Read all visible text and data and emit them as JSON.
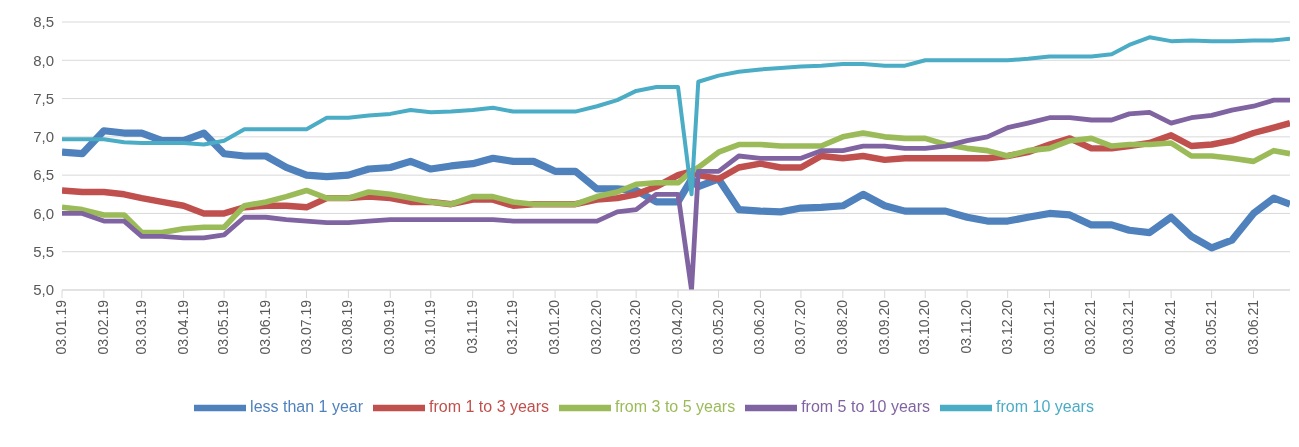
{
  "chart_data": {
    "type": "line",
    "x": [
      "2019-01-03",
      "2019-01-18",
      "2019-02-03",
      "2019-02-18",
      "2019-03-03",
      "2019-03-18",
      "2019-04-03",
      "2019-04-18",
      "2019-05-03",
      "2019-05-18",
      "2019-06-03",
      "2019-06-18",
      "2019-07-03",
      "2019-07-18",
      "2019-08-03",
      "2019-08-18",
      "2019-09-03",
      "2019-09-18",
      "2019-10-03",
      "2019-10-18",
      "2019-11-03",
      "2019-11-18",
      "2019-12-03",
      "2019-12-18",
      "2020-01-03",
      "2020-01-18",
      "2020-02-03",
      "2020-02-18",
      "2020-03-03",
      "2020-03-18",
      "2020-04-03",
      "2020-04-13",
      "2020-04-18",
      "2020-05-03",
      "2020-05-18",
      "2020-06-03",
      "2020-06-18",
      "2020-07-03",
      "2020-07-18",
      "2020-08-03",
      "2020-08-18",
      "2020-09-03",
      "2020-09-18",
      "2020-10-03",
      "2020-10-18",
      "2020-11-03",
      "2020-11-18",
      "2020-12-03",
      "2020-12-18",
      "2021-01-03",
      "2021-01-18",
      "2021-02-03",
      "2021-02-18",
      "2021-03-03",
      "2021-03-18",
      "2021-04-03",
      "2021-04-18",
      "2021-05-03",
      "2021-05-18",
      "2021-06-03",
      "2021-06-18",
      "2021-06-30"
    ],
    "series": [
      {
        "name": "less than 1 year",
        "color": "#4f81bd",
        "values": [
          6.8,
          6.78,
          7.08,
          7.05,
          7.05,
          6.95,
          6.95,
          7.05,
          6.78,
          6.75,
          6.75,
          6.6,
          6.5,
          6.48,
          6.5,
          6.58,
          6.6,
          6.68,
          6.58,
          6.62,
          6.65,
          6.72,
          6.68,
          6.68,
          6.55,
          6.55,
          6.32,
          6.32,
          6.3,
          6.15,
          6.15,
          6.45,
          6.35,
          6.45,
          6.05,
          6.03,
          6.02,
          6.07,
          6.08,
          6.1,
          6.25,
          6.1,
          6.03,
          6.03,
          6.03,
          5.95,
          5.9,
          5.9,
          5.95,
          6.0,
          5.98,
          5.85,
          5.85,
          5.78,
          5.75,
          5.95,
          5.7,
          5.55,
          5.65,
          6.0,
          6.2,
          6.12
        ]
      },
      {
        "name": "from 1 to 3 years",
        "color": "#c0504d",
        "values": [
          6.3,
          6.28,
          6.28,
          6.25,
          6.2,
          6.15,
          6.1,
          6.0,
          6.0,
          6.08,
          6.1,
          6.1,
          6.08,
          6.2,
          6.2,
          6.22,
          6.2,
          6.15,
          6.15,
          6.12,
          6.18,
          6.18,
          6.1,
          6.12,
          6.12,
          6.12,
          6.18,
          6.2,
          6.25,
          6.35,
          6.5,
          6.55,
          6.5,
          6.45,
          6.6,
          6.65,
          6.6,
          6.6,
          6.75,
          6.72,
          6.75,
          6.7,
          6.72,
          6.72,
          6.72,
          6.72,
          6.72,
          6.75,
          6.8,
          6.9,
          6.98,
          6.85,
          6.85,
          6.88,
          6.92,
          7.02,
          6.88,
          6.9,
          6.95,
          7.05,
          7.12,
          7.18
        ]
      },
      {
        "name": "from 3 to 5 years",
        "color": "#9bbb59",
        "values": [
          6.08,
          6.05,
          5.98,
          5.98,
          5.75,
          5.75,
          5.8,
          5.82,
          5.82,
          6.1,
          6.15,
          6.22,
          6.3,
          6.2,
          6.2,
          6.28,
          6.25,
          6.2,
          6.15,
          6.12,
          6.22,
          6.22,
          6.15,
          6.12,
          6.12,
          6.12,
          6.22,
          6.28,
          6.38,
          6.4,
          6.4,
          6.55,
          6.6,
          6.8,
          6.9,
          6.9,
          6.88,
          6.88,
          6.88,
          7.0,
          7.05,
          7.0,
          6.98,
          6.98,
          6.9,
          6.85,
          6.82,
          6.75,
          6.82,
          6.85,
          6.95,
          6.98,
          6.88,
          6.9,
          6.9,
          6.92,
          6.75,
          6.75,
          6.72,
          6.68,
          6.82,
          6.78
        ]
      },
      {
        "name": "from 5 to 10 years",
        "color": "#8064a2",
        "values": [
          6.0,
          6.0,
          5.9,
          5.9,
          5.7,
          5.7,
          5.68,
          5.68,
          5.72,
          5.95,
          5.95,
          5.92,
          5.9,
          5.88,
          5.88,
          5.9,
          5.92,
          5.92,
          5.92,
          5.92,
          5.92,
          5.92,
          5.9,
          5.9,
          5.9,
          5.9,
          5.9,
          6.02,
          6.05,
          6.25,
          6.25,
          5.0,
          6.55,
          6.55,
          6.75,
          6.72,
          6.72,
          6.72,
          6.82,
          6.82,
          6.88,
          6.88,
          6.85,
          6.85,
          6.88,
          6.95,
          7.0,
          7.12,
          7.18,
          7.25,
          7.25,
          7.22,
          7.22,
          7.3,
          7.32,
          7.18,
          7.25,
          7.28,
          7.35,
          7.4,
          7.48,
          7.48
        ]
      },
      {
        "name": "from 10 years",
        "color": "#4bacc6",
        "values": [
          6.97,
          6.97,
          6.97,
          6.93,
          6.92,
          6.92,
          6.92,
          6.9,
          6.95,
          7.1,
          7.1,
          7.1,
          7.1,
          7.25,
          7.25,
          7.28,
          7.3,
          7.35,
          7.32,
          7.33,
          7.35,
          7.38,
          7.33,
          7.33,
          7.33,
          7.33,
          7.4,
          7.48,
          7.6,
          7.65,
          7.65,
          6.25,
          7.72,
          7.8,
          7.85,
          7.88,
          7.9,
          7.92,
          7.93,
          7.95,
          7.95,
          7.93,
          7.93,
          8.0,
          8.0,
          8.0,
          8.0,
          8.0,
          8.02,
          8.05,
          8.05,
          8.05,
          8.08,
          8.2,
          8.3,
          8.25,
          8.26,
          8.25,
          8.25,
          8.26,
          8.26,
          8.28
        ]
      }
    ],
    "xlim": [
      "2019-01-03",
      "2021-06-30"
    ],
    "xticks": [
      {
        "value": "2019-01-03",
        "label": "03.01.19"
      },
      {
        "value": "2019-02-03",
        "label": "03.02.19"
      },
      {
        "value": "2019-03-03",
        "label": "03.03.19"
      },
      {
        "value": "2019-04-03",
        "label": "03.04.19"
      },
      {
        "value": "2019-05-03",
        "label": "03.05.19"
      },
      {
        "value": "2019-06-03",
        "label": "03.06.19"
      },
      {
        "value": "2019-07-03",
        "label": "03.07.19"
      },
      {
        "value": "2019-08-03",
        "label": "03.08.19"
      },
      {
        "value": "2019-09-03",
        "label": "03.09.19"
      },
      {
        "value": "2019-10-03",
        "label": "03.10.19"
      },
      {
        "value": "2019-11-03",
        "label": "03.11.19"
      },
      {
        "value": "2019-12-03",
        "label": "03.12.19"
      },
      {
        "value": "2020-01-03",
        "label": "03.01.20"
      },
      {
        "value": "2020-02-03",
        "label": "03.02.20"
      },
      {
        "value": "2020-03-03",
        "label": "03.03.20"
      },
      {
        "value": "2020-04-03",
        "label": "03.04.20"
      },
      {
        "value": "2020-05-03",
        "label": "03.05.20"
      },
      {
        "value": "2020-06-03",
        "label": "03.06.20"
      },
      {
        "value": "2020-07-03",
        "label": "03.07.20"
      },
      {
        "value": "2020-08-03",
        "label": "03.08.20"
      },
      {
        "value": "2020-09-03",
        "label": "03.09.20"
      },
      {
        "value": "2020-10-03",
        "label": "03.10.20"
      },
      {
        "value": "2020-11-03",
        "label": "03.11.20"
      },
      {
        "value": "2020-12-03",
        "label": "03.12.20"
      },
      {
        "value": "2021-01-03",
        "label": "03.01.21"
      },
      {
        "value": "2021-02-03",
        "label": "03.02.21"
      },
      {
        "value": "2021-03-03",
        "label": "03.03.21"
      },
      {
        "value": "2021-04-03",
        "label": "03.04.21"
      },
      {
        "value": "2021-05-03",
        "label": "03.05.21"
      },
      {
        "value": "2021-06-03",
        "label": "03.06.21"
      }
    ],
    "ylim": [
      5.0,
      8.5
    ],
    "yticks": [
      {
        "value": 5.0,
        "label": "5,0"
      },
      {
        "value": 5.5,
        "label": "5,5"
      },
      {
        "value": 6.0,
        "label": "6,0"
      },
      {
        "value": 6.5,
        "label": "6,5"
      },
      {
        "value": 7.0,
        "label": "7,0"
      },
      {
        "value": 7.5,
        "label": "7,5"
      },
      {
        "value": 8.0,
        "label": "8,0"
      },
      {
        "value": 8.5,
        "label": "8,5"
      }
    ],
    "grid": "y",
    "legend": "bottom",
    "line_style": "solid"
  }
}
